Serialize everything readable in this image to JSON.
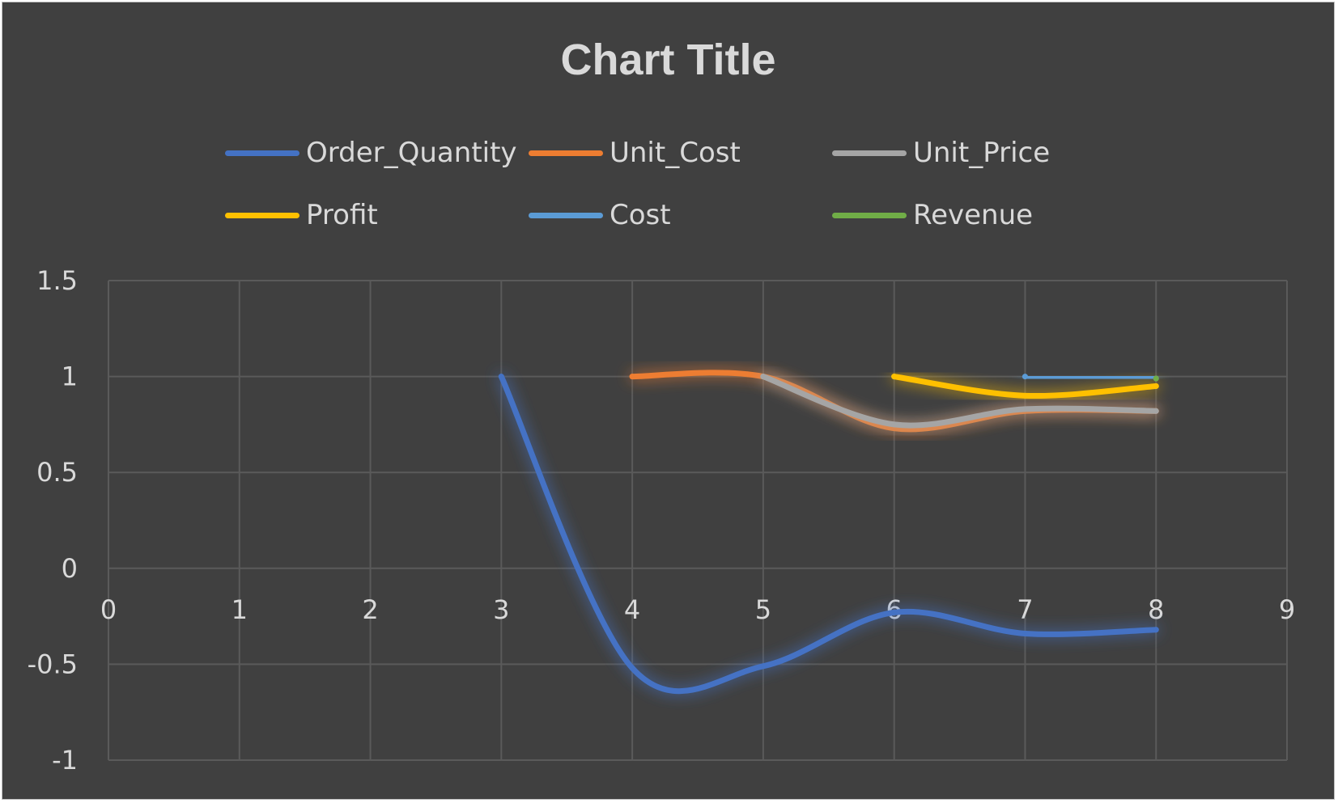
{
  "chart_data": {
    "type": "scatter",
    "title": "Chart Title",
    "xlabel": "",
    "ylabel": "",
    "xlim": [
      0,
      9
    ],
    "ylim": [
      -1,
      1.5
    ],
    "x_ticks": [
      "0",
      "1",
      "2",
      "3",
      "4",
      "5",
      "6",
      "7",
      "8",
      "9"
    ],
    "y_ticks": [
      "1.5",
      "1",
      "0.5",
      "0",
      "-0.5",
      "-1"
    ],
    "grid": true,
    "legend_position": "top",
    "smoothed_lines": true,
    "series": [
      {
        "name": "Order_Quantity",
        "color": "#4472c4",
        "x": [
          3,
          4,
          5,
          6,
          7,
          8
        ],
        "y": [
          1,
          -0.52,
          -0.51,
          -0.23,
          -0.34,
          -0.32
        ]
      },
      {
        "name": "Unit_Cost",
        "color": "#ed7d31",
        "x": [
          4,
          5,
          6,
          7,
          8
        ],
        "y": [
          1,
          1,
          0.73,
          0.82,
          0.82
        ]
      },
      {
        "name": "Unit_Price",
        "color": "#a5a5a5",
        "x": [
          5,
          6,
          7,
          8
        ],
        "y": [
          1,
          0.75,
          0.83,
          0.82
        ]
      },
      {
        "name": "Profit",
        "color": "#ffc000",
        "x": [
          6,
          7,
          8
        ],
        "y": [
          1,
          0.9,
          0.95
        ]
      },
      {
        "name": "Cost",
        "color": "#5b9bd5",
        "x": [
          7,
          8
        ],
        "y": [
          1,
          0.99
        ]
      },
      {
        "name": "Revenue",
        "color": "#70ad47",
        "x": [
          8
        ],
        "y": [
          0.99
        ]
      }
    ]
  }
}
